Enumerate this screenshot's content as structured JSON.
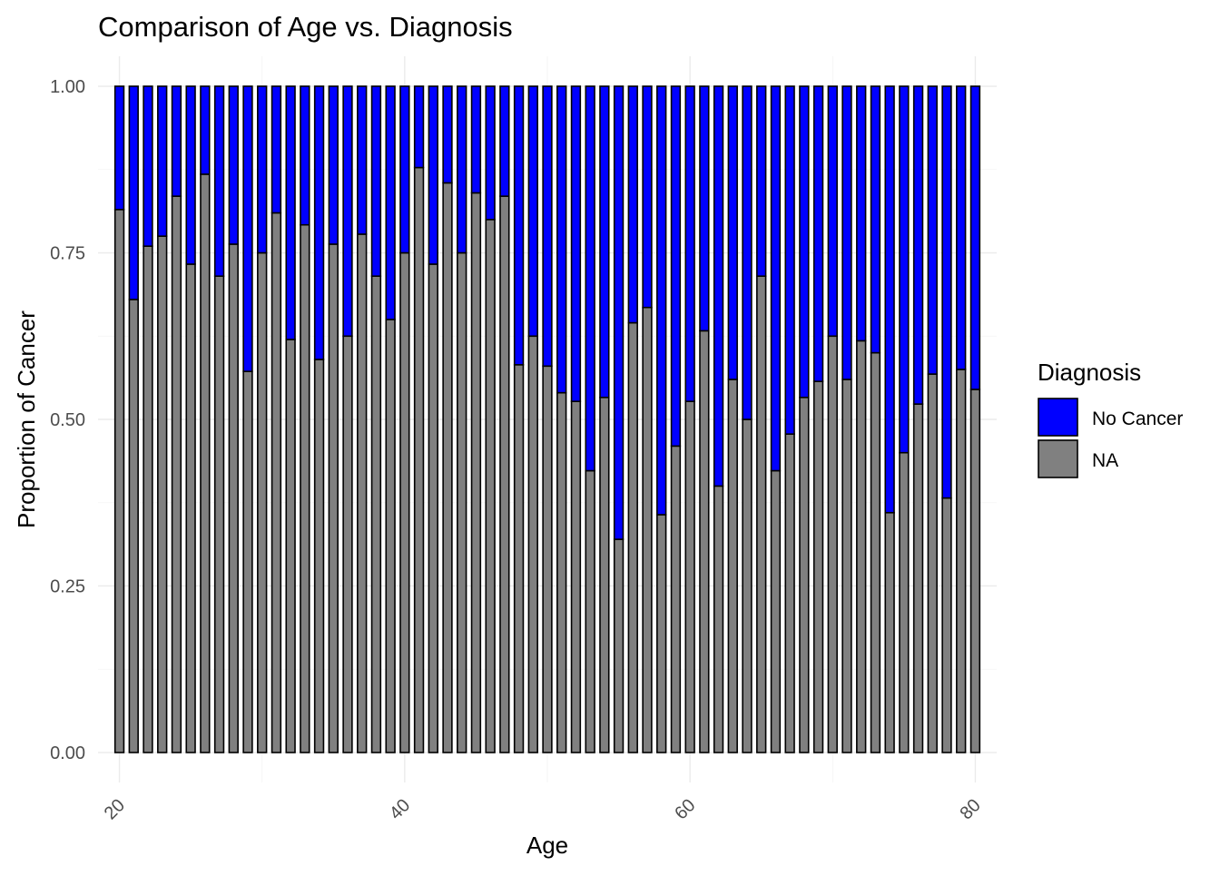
{
  "chart_data": {
    "type": "bar",
    "stacked": true,
    "title": "Comparison of Age vs. Diagnosis",
    "xlabel": "Age",
    "ylabel": "Proportion of Cancer",
    "xlim": [
      18.5,
      81.5
    ],
    "ylim": [
      -0.045,
      1.045
    ],
    "x_ticks": [
      20,
      40,
      60,
      80
    ],
    "x_tick_labels": [
      "20",
      "40",
      "60",
      "80"
    ],
    "x_minor_ticks": [
      30,
      50,
      70
    ],
    "y_ticks": [
      0,
      0.25,
      0.5,
      0.75,
      1
    ],
    "y_tick_labels": [
      "0.00",
      "0.25",
      "0.50",
      "0.75",
      "1.00"
    ],
    "y_minor_ticks": [
      0.125,
      0.375,
      0.625,
      0.875
    ],
    "grid": true,
    "legend": {
      "title": "Diagnosis",
      "placement": "right"
    },
    "x": [
      20,
      21,
      22,
      23,
      24,
      25,
      26,
      27,
      28,
      29,
      30,
      31,
      32,
      33,
      34,
      35,
      36,
      37,
      38,
      39,
      40,
      41,
      42,
      43,
      44,
      45,
      46,
      47,
      48,
      49,
      50,
      51,
      52,
      53,
      54,
      55,
      56,
      57,
      58,
      59,
      60,
      61,
      62,
      63,
      64,
      65,
      66,
      67,
      68,
      69,
      70,
      71,
      72,
      73,
      74,
      75,
      76,
      77,
      78,
      79,
      80
    ],
    "series": [
      {
        "name": "NA",
        "color": "#808080",
        "values": [
          0.815,
          0.68,
          0.76,
          0.775,
          0.835,
          0.733,
          0.868,
          0.715,
          0.763,
          0.572,
          0.75,
          0.81,
          0.62,
          0.792,
          0.59,
          0.763,
          0.625,
          0.778,
          0.715,
          0.65,
          0.75,
          0.878,
          0.733,
          0.855,
          0.75,
          0.84,
          0.8,
          0.835,
          0.582,
          0.625,
          0.58,
          0.54,
          0.527,
          0.423,
          0.533,
          0.32,
          0.645,
          0.668,
          0.357,
          0.46,
          0.527,
          0.633,
          0.4,
          0.56,
          0.5,
          0.715,
          0.423,
          0.478,
          0.533,
          0.557,
          0.625,
          0.56,
          0.618,
          0.6,
          0.36,
          0.45,
          0.523,
          0.568,
          0.382,
          0.575,
          0.545
        ]
      },
      {
        "name": "No Cancer",
        "color": "#0000ff",
        "values": [
          0.185,
          0.32,
          0.24,
          0.225,
          0.165,
          0.267,
          0.132,
          0.285,
          0.237,
          0.428,
          0.25,
          0.19,
          0.38,
          0.208,
          0.41,
          0.237,
          0.375,
          0.222,
          0.285,
          0.35,
          0.25,
          0.122,
          0.267,
          0.145,
          0.25,
          0.16,
          0.2,
          0.165,
          0.418,
          0.375,
          0.42,
          0.46,
          0.473,
          0.577,
          0.467,
          0.68,
          0.355,
          0.332,
          0.643,
          0.54,
          0.473,
          0.367,
          0.6,
          0.44,
          0.5,
          0.285,
          0.577,
          0.522,
          0.467,
          0.443,
          0.375,
          0.44,
          0.382,
          0.4,
          0.64,
          0.55,
          0.477,
          0.432,
          0.618,
          0.425,
          0.455
        ]
      }
    ],
    "legend_order": [
      "No Cancer",
      "NA"
    ]
  }
}
